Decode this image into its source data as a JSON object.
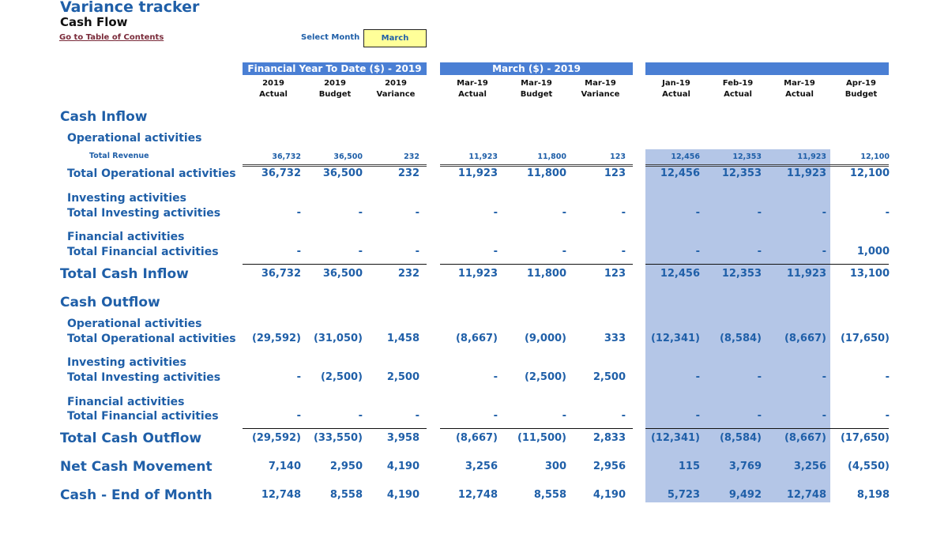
{
  "header": {
    "title": "Variance tracker",
    "subtitle": "Cash Flow",
    "toc_link": "Go to Table of Contents",
    "select_month_label": "Select Month",
    "select_month_value": "March"
  },
  "banners": {
    "ytd": "Financial Year To Date ($) - 2019",
    "month": "March ($) - 2019",
    "monthly": ""
  },
  "columns": [
    {
      "line1": "2019",
      "line2": "Actual"
    },
    {
      "line1": "2019",
      "line2": "Budget"
    },
    {
      "line1": "2019",
      "line2": "Variance"
    },
    {
      "line1": "Mar-19",
      "line2": "Actual"
    },
    {
      "line1": "Mar-19",
      "line2": "Budget"
    },
    {
      "line1": "Mar-19",
      "line2": "Variance"
    },
    {
      "line1": "Jan-19",
      "line2": "Actual"
    },
    {
      "line1": "Feb-19",
      "line2": "Actual"
    },
    {
      "line1": "Mar-19",
      "line2": "Actual"
    },
    {
      "line1": "Apr-19",
      "line2": "Budget"
    }
  ],
  "labels": {
    "cash_inflow": "Cash Inflow",
    "op_activities_in": "Operational activities",
    "total_revenue": "Total Revenue",
    "total_op_in": "Total Operational activities",
    "inv_activities_in": "Investing activities",
    "total_inv_in": "Total Investing activities",
    "fin_activities_in": "Financial activities",
    "total_fin_in": "Total Financial activities",
    "total_cash_inflow": "Total Cash Inflow",
    "cash_outflow": "Cash Outflow",
    "op_activities_out": "Operational activities",
    "total_op_out": "Total Operational activities",
    "inv_activities_out": "Investing activities",
    "total_inv_out": "Total Investing activities",
    "fin_activities_out": "Financial activities",
    "total_fin_out": "Total Financial activities",
    "total_cash_outflow": "Total Cash Outflow",
    "net_cash_movement": "Net Cash Movement",
    "cash_end_of_month": "Cash - End of Month"
  },
  "rows": {
    "total_revenue": [
      "36,732",
      "36,500",
      "232",
      "11,923",
      "11,800",
      "123",
      "12,456",
      "12,353",
      "11,923",
      "12,100"
    ],
    "total_op_in": [
      "36,732",
      "36,500",
      "232",
      "11,923",
      "11,800",
      "123",
      "12,456",
      "12,353",
      "11,923",
      "12,100"
    ],
    "total_inv_in": [
      "-",
      "-",
      "-",
      "-",
      "-",
      "-",
      "-",
      "-",
      "-",
      "-"
    ],
    "total_fin_in": [
      "-",
      "-",
      "-",
      "-",
      "-",
      "-",
      "-",
      "-",
      "-",
      "1,000"
    ],
    "total_cash_inflow": [
      "36,732",
      "36,500",
      "232",
      "11,923",
      "11,800",
      "123",
      "12,456",
      "12,353",
      "11,923",
      "13,100"
    ],
    "total_op_out": [
      "(29,592)",
      "(31,050)",
      "1,458",
      "(8,667)",
      "(9,000)",
      "333",
      "(12,341)",
      "(8,584)",
      "(8,667)",
      "(17,650)"
    ],
    "total_inv_out": [
      "-",
      "(2,500)",
      "2,500",
      "-",
      "(2,500)",
      "2,500",
      "-",
      "-",
      "-",
      "-"
    ],
    "total_fin_out": [
      "-",
      "-",
      "-",
      "-",
      "-",
      "-",
      "-",
      "-",
      "-",
      "-"
    ],
    "total_cash_outflow": [
      "(29,592)",
      "(33,550)",
      "3,958",
      "(8,667)",
      "(11,500)",
      "2,833",
      "(12,341)",
      "(8,584)",
      "(8,667)",
      "(17,650)"
    ],
    "net_cash_movement": [
      "7,140",
      "2,950",
      "4,190",
      "3,256",
      "300",
      "2,956",
      "115",
      "3,769",
      "3,256",
      "(4,550)"
    ],
    "cash_end_of_month": [
      "12,748",
      "8,558",
      "4,190",
      "12,748",
      "8,558",
      "4,190",
      "5,723",
      "9,492",
      "12,748",
      "8,198"
    ]
  }
}
